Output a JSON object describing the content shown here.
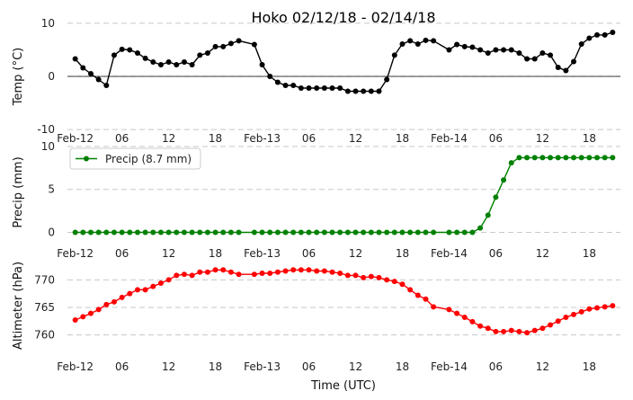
{
  "figure": {
    "title": "Hoko 02/12/18 - 02/14/18",
    "xlabel": "Time (UTC)"
  },
  "chart_data": [
    {
      "type": "line",
      "ylabel": "Temp (°C)",
      "ylim": [
        -11,
        11
      ],
      "yticks": [
        -10,
        0,
        10
      ],
      "grid": true,
      "zero_line": true,
      "x_ticks": [
        "Feb-12",
        "06",
        "12",
        "18",
        "Feb-13",
        "06",
        "12",
        "18",
        "Feb-14",
        "06",
        "12",
        "18"
      ],
      "x_range_hours": [
        -1,
        70
      ],
      "series": [
        {
          "color": "#000000",
          "x": [
            0,
            1,
            2,
            3,
            4,
            5,
            6,
            7,
            8,
            9,
            10,
            11,
            12,
            13,
            14,
            15,
            16,
            17,
            18,
            19,
            20,
            21,
            23,
            24,
            25,
            26,
            27,
            28,
            29,
            30,
            31,
            32,
            33,
            34,
            35,
            36,
            37,
            38,
            39,
            40,
            41,
            42,
            43,
            44,
            45,
            46,
            48,
            49,
            50,
            51,
            52,
            53,
            54,
            55,
            56,
            57,
            58,
            59,
            60,
            61,
            62,
            63,
            64,
            65,
            66,
            67,
            68,
            69
          ],
          "y": [
            3.3,
            1.6,
            0.5,
            -0.6,
            -1.7,
            4.0,
            5.1,
            5.0,
            4.4,
            3.4,
            2.7,
            2.2,
            2.7,
            2.2,
            2.7,
            2.2,
            4.0,
            4.4,
            5.6,
            5.6,
            6.2,
            6.7,
            6.0,
            2.2,
            0,
            -1.1,
            -1.7,
            -1.7,
            -2.2,
            -2.2,
            -2.2,
            -2.2,
            -2.2,
            -2.2,
            -2.8,
            -2.8,
            -2.8,
            -2.8,
            -2.8,
            -0.6,
            4.0,
            6.1,
            6.7,
            6.1,
            6.8,
            6.7,
            5.0,
            6.0,
            5.6,
            5.5,
            5.0,
            4.4,
            5.0,
            5.0,
            5.0,
            4.4,
            3.3,
            3.3,
            4.4,
            4.0,
            1.7,
            1.1,
            2.8,
            6.1,
            7.2,
            7.8,
            7.8,
            8.3
          ]
        }
      ]
    },
    {
      "type": "line",
      "ylabel": "Precip (mm)",
      "ylim": [
        -1,
        10
      ],
      "yticks": [
        0,
        5,
        10
      ],
      "grid": true,
      "legend_position": "top-left",
      "x_ticks": [
        "Feb-12",
        "06",
        "12",
        "18",
        "Feb-13",
        "06",
        "12",
        "18",
        "Feb-14",
        "06",
        "12",
        "18"
      ],
      "x_range_hours": [
        -1,
        70
      ],
      "series": [
        {
          "name": "Precip (8.7 mm)",
          "color": "#008000",
          "x": [
            0,
            1,
            2,
            3,
            4,
            5,
            6,
            7,
            8,
            9,
            10,
            11,
            12,
            13,
            14,
            15,
            16,
            17,
            18,
            19,
            20,
            21,
            23,
            24,
            25,
            26,
            27,
            28,
            29,
            30,
            31,
            32,
            33,
            34,
            35,
            36,
            37,
            38,
            39,
            40,
            41,
            42,
            43,
            44,
            45,
            46,
            48,
            49,
            50,
            51,
            52,
            53,
            54,
            55,
            56,
            57,
            58,
            59,
            60,
            61,
            62,
            63,
            64,
            65,
            66,
            67,
            68,
            69
          ],
          "y": [
            0,
            0,
            0,
            0,
            0,
            0,
            0,
            0,
            0,
            0,
            0,
            0,
            0,
            0,
            0,
            0,
            0,
            0,
            0,
            0,
            0,
            0,
            0,
            0,
            0,
            0,
            0,
            0,
            0,
            0,
            0,
            0,
            0,
            0,
            0,
            0,
            0,
            0,
            0,
            0,
            0,
            0,
            0,
            0,
            0,
            0,
            0,
            0,
            0,
            0,
            0.5,
            2.0,
            4.1,
            6.1,
            8.1,
            8.7,
            8.7,
            8.7,
            8.7,
            8.7,
            8.7,
            8.7,
            8.7,
            8.7,
            8.7,
            8.7,
            8.7,
            8.7
          ]
        }
      ]
    },
    {
      "type": "line",
      "ylabel": "Altimeter (hPa)",
      "ylim": [
        756.5,
        772.5
      ],
      "yticks": [
        760,
        765,
        770
      ],
      "grid": true,
      "x_ticks": [
        "Feb-12",
        "06",
        "12",
        "18",
        "Feb-13",
        "06",
        "12",
        "18",
        "Feb-14",
        "06",
        "12",
        "18"
      ],
      "x_range_hours": [
        -1,
        70
      ],
      "series": [
        {
          "color": "#ff0000",
          "x": [
            0,
            1,
            2,
            3,
            4,
            5,
            6,
            7,
            8,
            9,
            10,
            11,
            12,
            13,
            14,
            15,
            16,
            17,
            18,
            19,
            20,
            21,
            23,
            24,
            25,
            26,
            27,
            28,
            29,
            30,
            31,
            32,
            33,
            34,
            35,
            36,
            37,
            38,
            39,
            40,
            41,
            42,
            43,
            44,
            45,
            46,
            48,
            49,
            50,
            51,
            52,
            53,
            54,
            55,
            56,
            57,
            58,
            59,
            60,
            61,
            62,
            63,
            64,
            65,
            66,
            67,
            68,
            69
          ],
          "y": [
            762.7,
            763.3,
            763.9,
            764.6,
            765.5,
            766.0,
            766.8,
            767.5,
            768.2,
            768.2,
            768.8,
            769.4,
            770.0,
            770.8,
            771.0,
            770.8,
            771.4,
            771.4,
            771.8,
            771.8,
            771.4,
            771.0,
            771.0,
            771.2,
            771.2,
            771.4,
            771.6,
            771.8,
            771.8,
            771.8,
            771.6,
            771.6,
            771.4,
            771.2,
            770.8,
            770.8,
            770.4,
            770.6,
            770.4,
            770.0,
            769.7,
            769.2,
            768.2,
            767.2,
            766.5,
            765.1,
            764.6,
            763.9,
            763.2,
            762.4,
            761.6,
            761.2,
            760.6,
            760.6,
            760.8,
            760.6,
            760.4,
            760.8,
            761.2,
            761.8,
            762.5,
            763.2,
            763.7,
            764.2,
            764.7,
            764.9,
            765.1,
            765.3
          ]
        }
      ]
    }
  ]
}
